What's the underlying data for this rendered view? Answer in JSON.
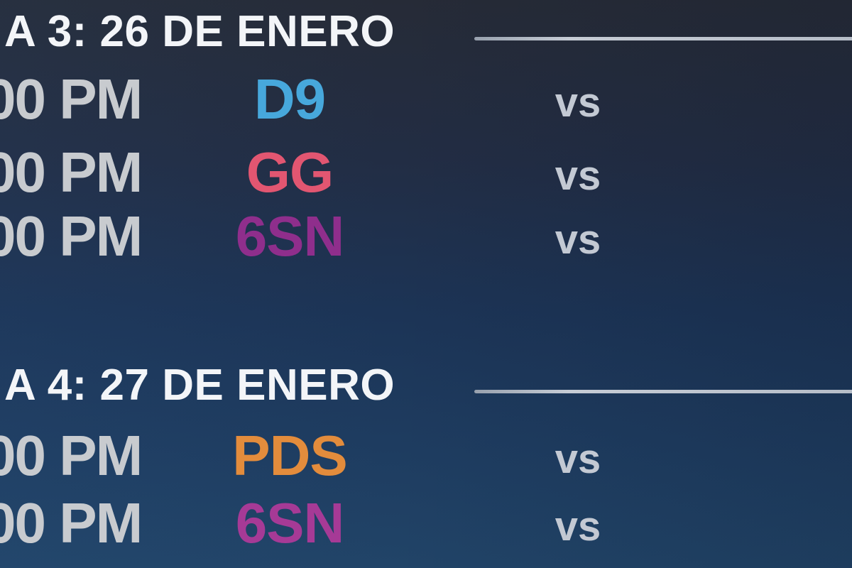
{
  "page": {
    "description": "Esports match schedule graphic, cropped at left and right edges",
    "background_top_color": "#262b37",
    "background_bottom_color": "#214468",
    "divider_color": "#b6bdc8",
    "title_color": "#f3f5f8",
    "time_color": "#c8cbcf",
    "vs_color": "#c3c9d3"
  },
  "sections": [
    {
      "title": "A 3: 26 DE ENERO",
      "rows": [
        {
          "time": "00 PM",
          "team": "D9",
          "team_color": "#47a8dc",
          "vs": "vs"
        },
        {
          "time": "00 PM",
          "team": "GG",
          "team_color": "#e25671",
          "vs": "vs"
        },
        {
          "time": "00 PM",
          "team": "6SN",
          "team_color": "#8f2e8c",
          "vs": "vs"
        }
      ]
    },
    {
      "title": "A 4: 27 DE ENERO",
      "rows": [
        {
          "time": "00 PM",
          "team": "PDS",
          "team_color": "#e38c3c",
          "vs": "vs"
        },
        {
          "time": "00 PM",
          "team": "6SN",
          "team_color": "#a63a96",
          "vs": "vs"
        }
      ]
    }
  ]
}
